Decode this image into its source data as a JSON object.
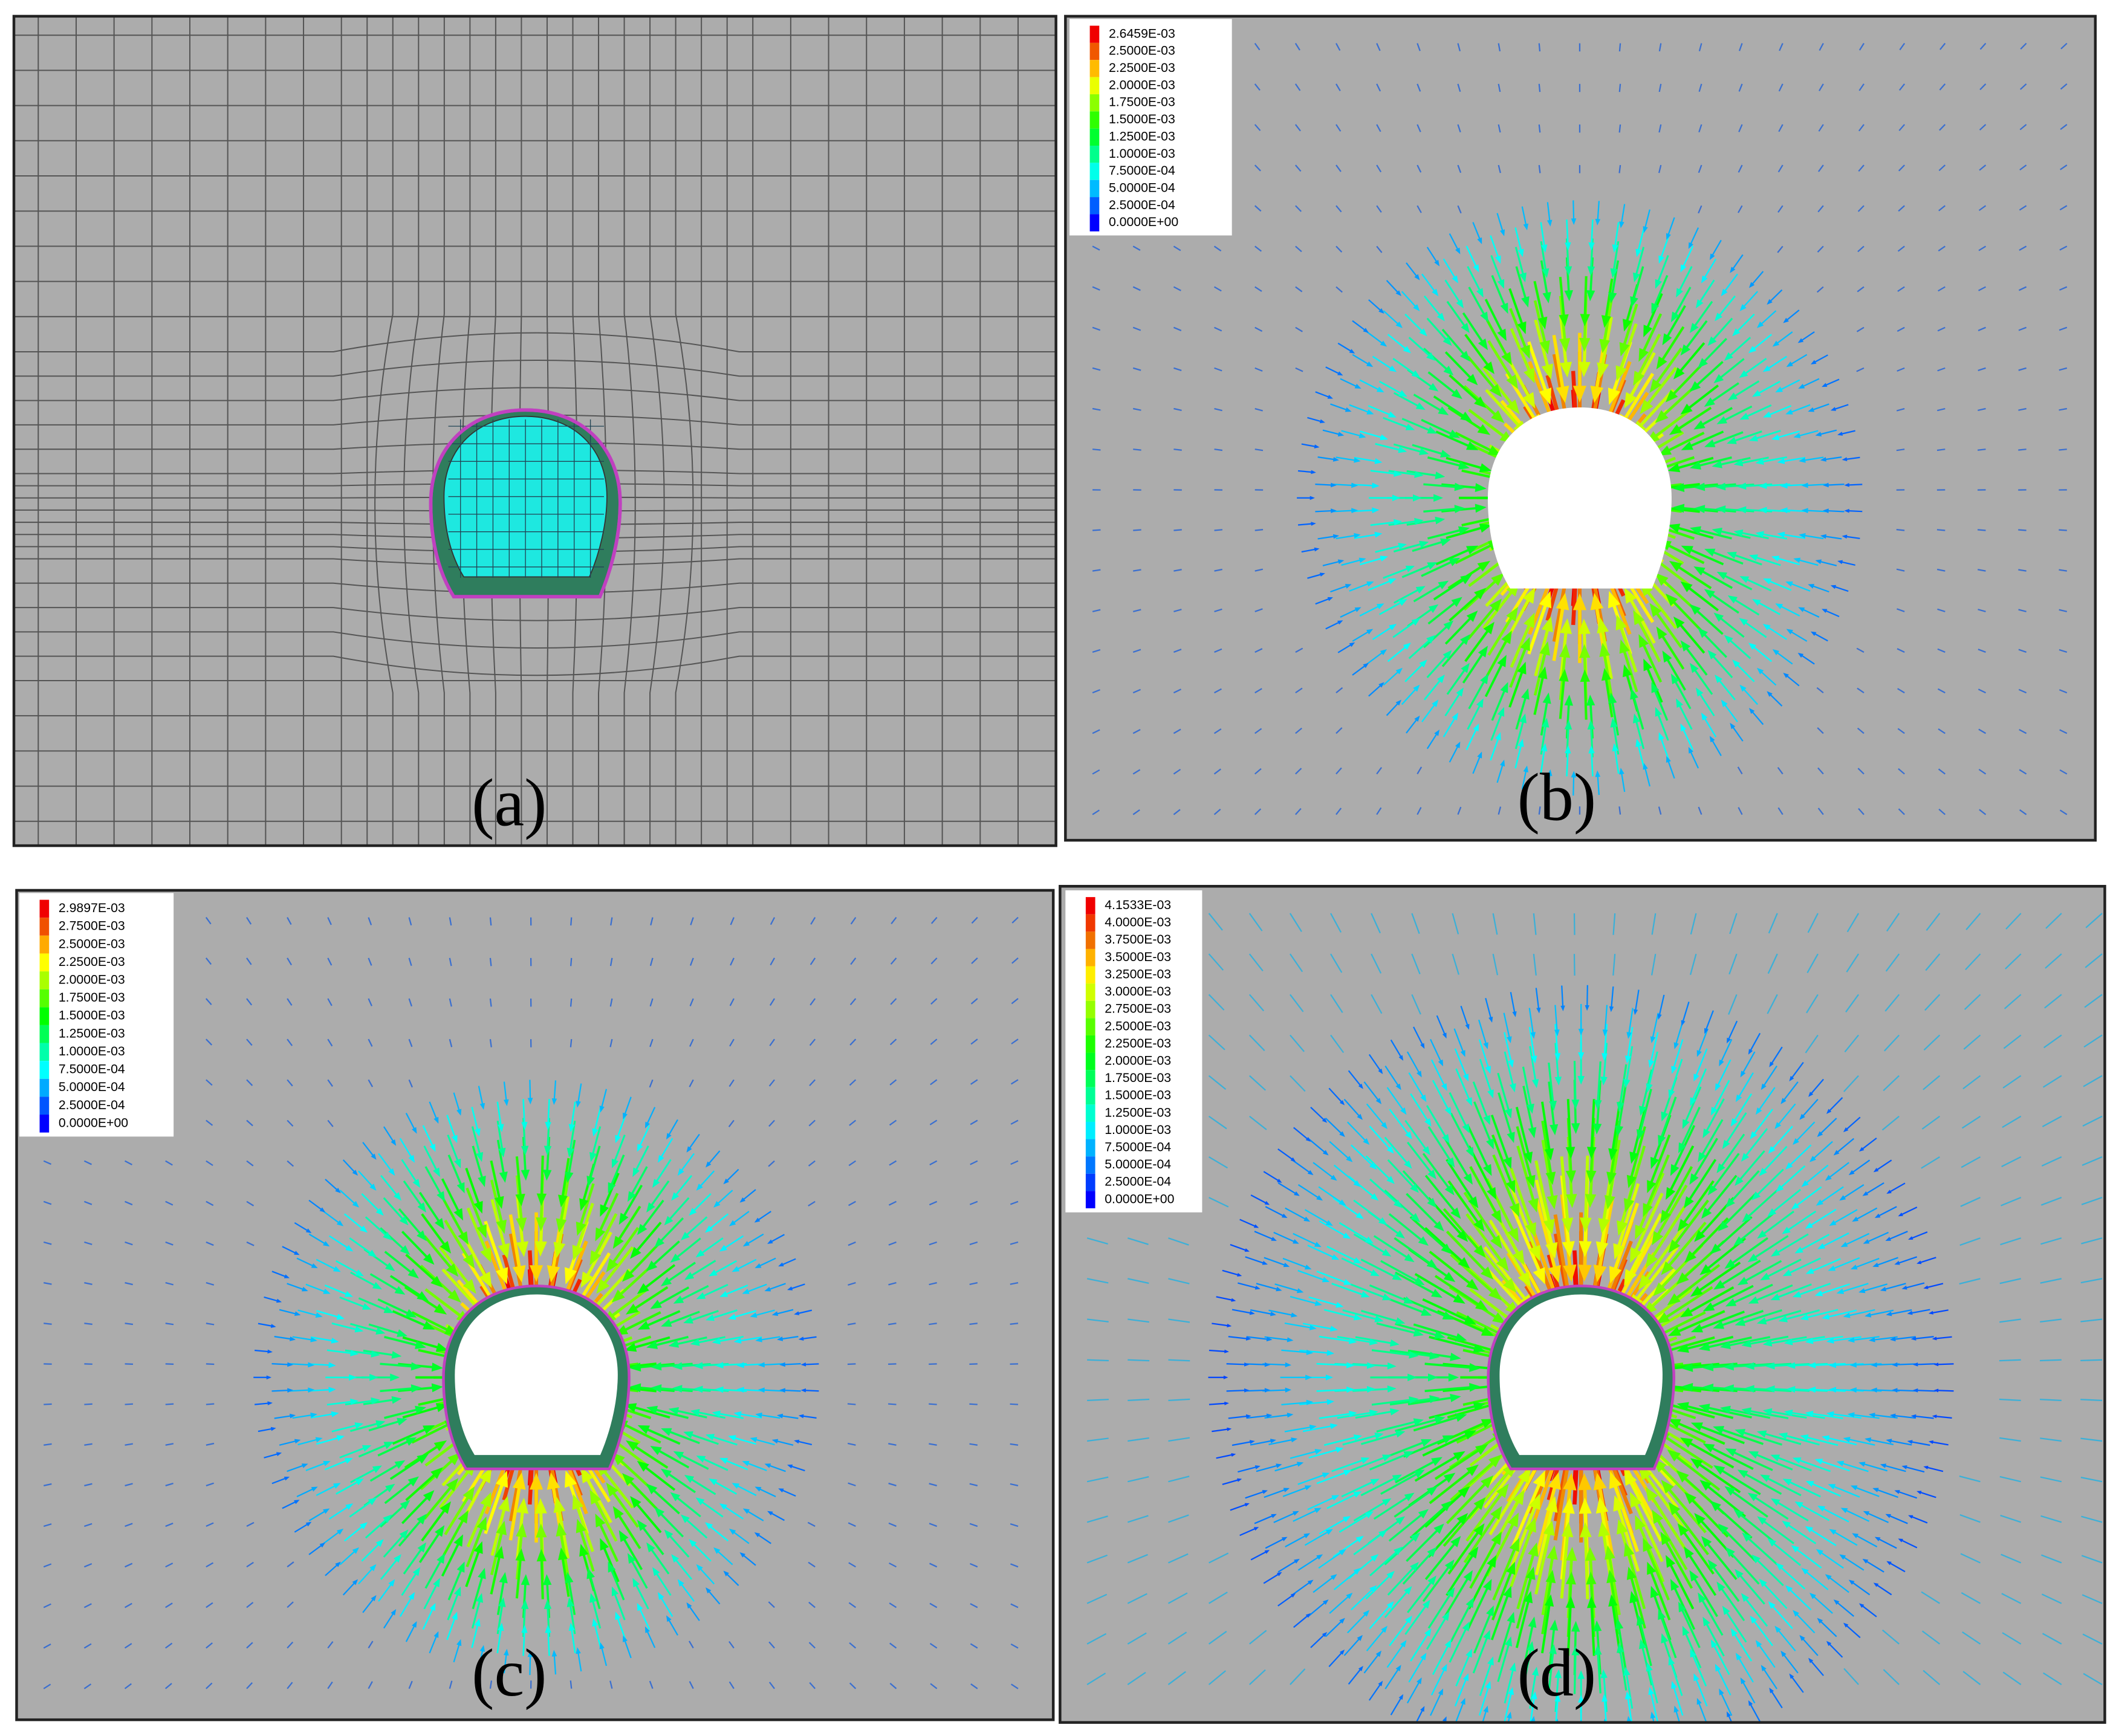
{
  "panels": [
    {
      "label": "(a)"
    },
    {
      "label": "(b)",
      "legend": [
        "2.6459E-03",
        "2.5000E-03",
        "2.2500E-03",
        "2.0000E-03",
        "1.7500E-03",
        "1.5000E-03",
        "1.2500E-03",
        "1.0000E-03",
        "7.5000E-04",
        "5.0000E-04",
        "2.5000E-04",
        "0.0000E+00"
      ]
    },
    {
      "label": "(c)",
      "legend": [
        "2.9897E-03",
        "2.7500E-03",
        "2.5000E-03",
        "2.2500E-03",
        "2.0000E-03",
        "1.7500E-03",
        "1.5000E-03",
        "1.2500E-03",
        "1.0000E-03",
        "7.5000E-04",
        "5.0000E-04",
        "2.5000E-04",
        "0.0000E+00"
      ]
    },
    {
      "label": "(d)",
      "legend": [
        "4.1533E-03",
        "4.0000E-03",
        "3.7500E-03",
        "3.5000E-03",
        "3.2500E-03",
        "3.0000E-03",
        "2.7500E-03",
        "2.5000E-03",
        "2.2500E-03",
        "2.0000E-03",
        "1.7500E-03",
        "1.5000E-03",
        "1.2500E-03",
        "1.0000E-03",
        "7.5000E-04",
        "5.0000E-04",
        "2.5000E-04",
        "0.0000E+00"
      ]
    }
  ]
}
